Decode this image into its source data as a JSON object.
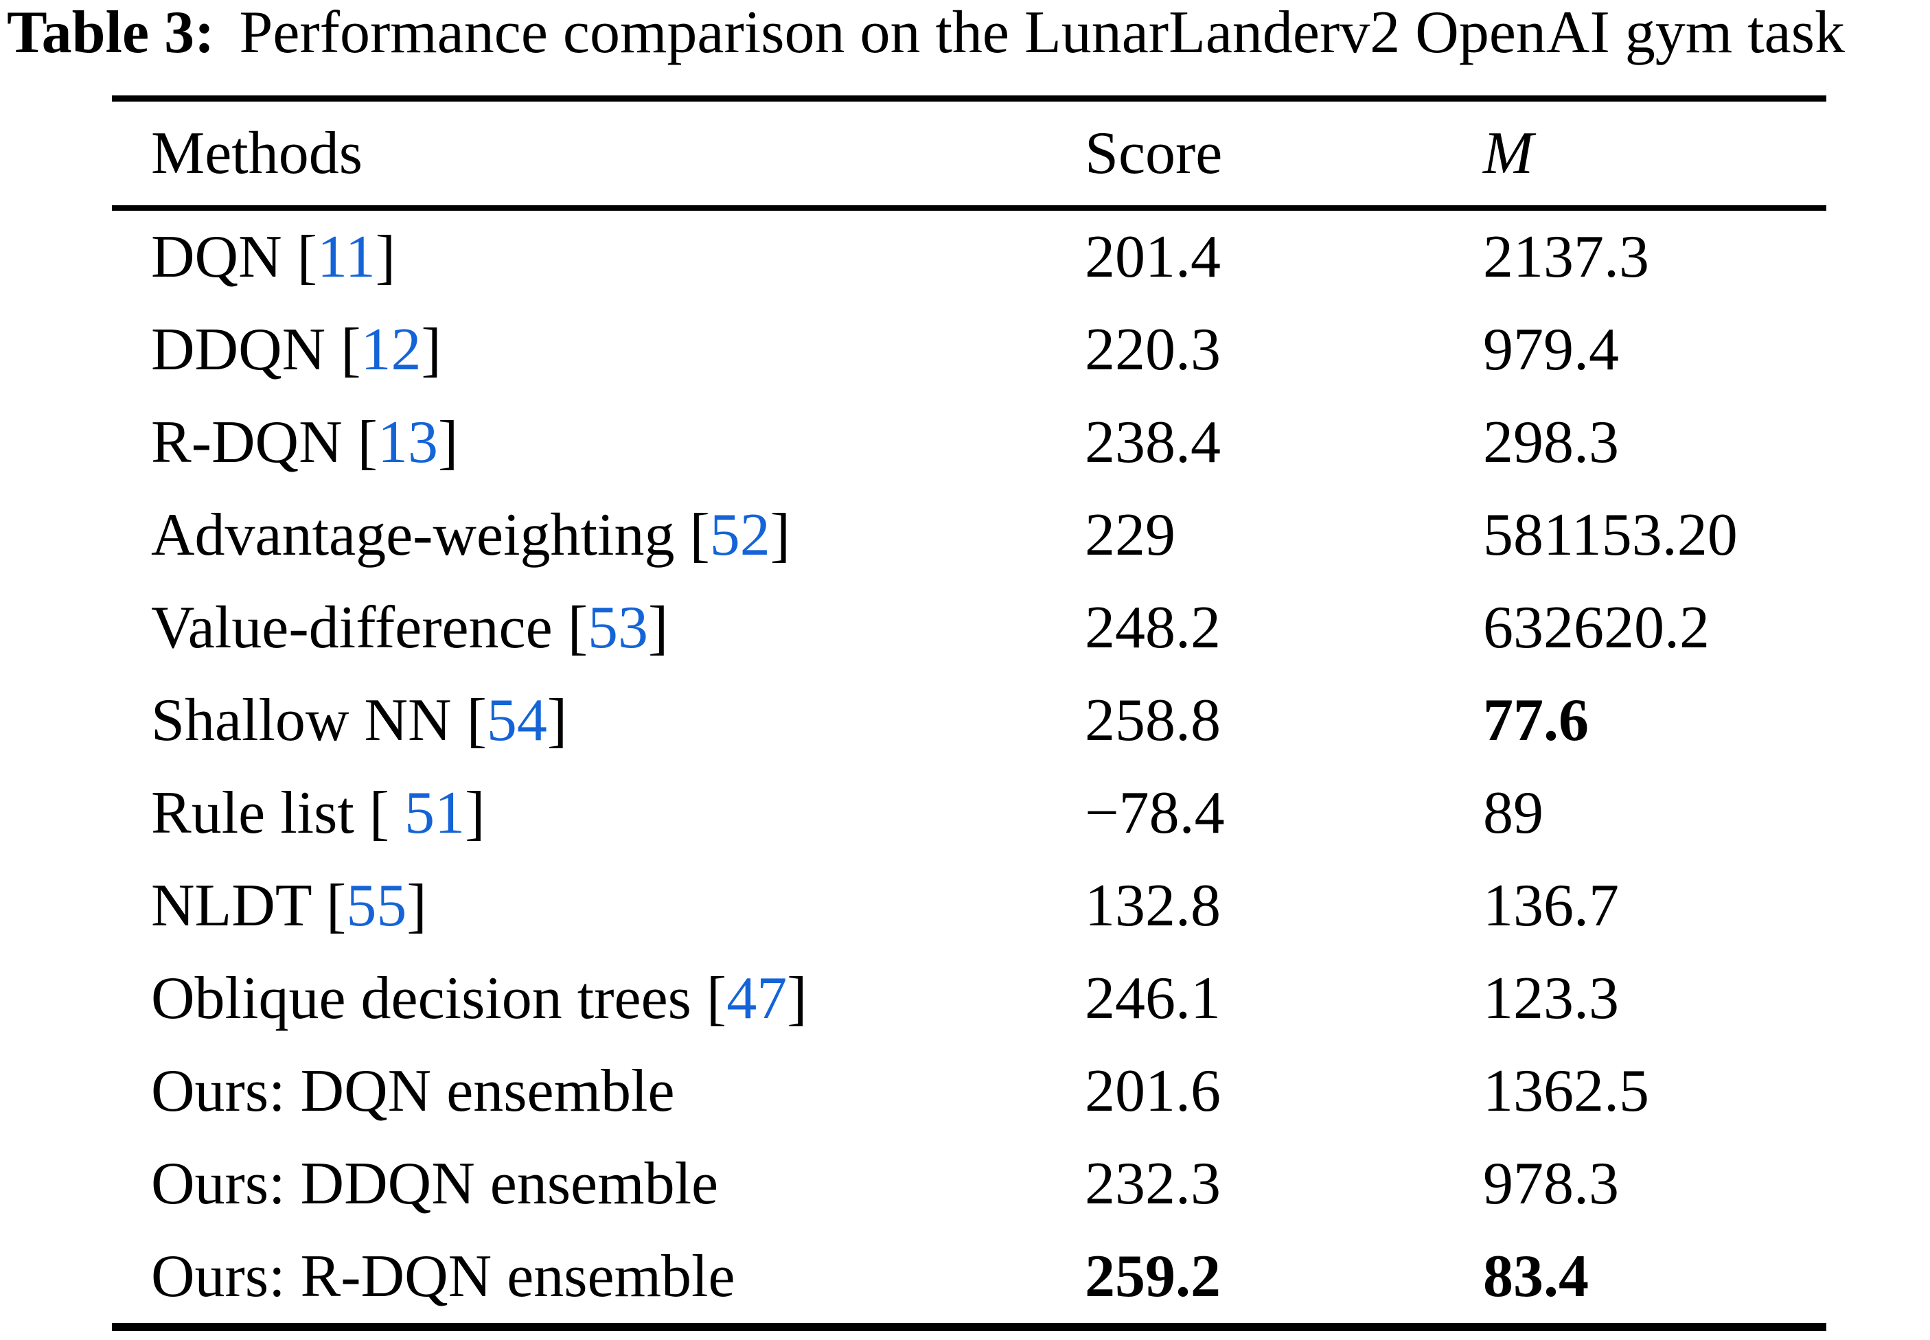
{
  "caption": {
    "prefix": "Table 3:",
    "text": "Performance comparison on the LunarLanderv2 OpenAI gym task"
  },
  "colors": {
    "citation_blue": "#1464d7",
    "text_black": "#000000",
    "background": "#ffffff"
  },
  "table": {
    "headers": {
      "methods": "Methods",
      "score": "Score",
      "m": "M"
    },
    "rows": [
      {
        "method": "DQN",
        "bracket_open": " [",
        "cite": "11",
        "bracket_close": "]",
        "score": "201.4",
        "m": "2137.3",
        "score_bold": false,
        "m_bold": false
      },
      {
        "method": "DDQN",
        "bracket_open": " [",
        "cite": "12",
        "bracket_close": "]",
        "score": "220.3",
        "m": "979.4",
        "score_bold": false,
        "m_bold": false
      },
      {
        "method": "R-DQN",
        "bracket_open": " [",
        "cite": "13",
        "bracket_close": "]",
        "score": "238.4",
        "m": "298.3",
        "score_bold": false,
        "m_bold": false
      },
      {
        "method": "Advantage-weighting",
        "bracket_open": " [",
        "cite": "52",
        "bracket_close": "]",
        "score": "229",
        "m": "581153.20",
        "score_bold": false,
        "m_bold": false
      },
      {
        "method": "Value-difference",
        "bracket_open": " [",
        "cite": "53",
        "bracket_close": "]",
        "score": "248.2",
        "m": "632620.2",
        "score_bold": false,
        "m_bold": false
      },
      {
        "method": "Shallow NN",
        "bracket_open": " [",
        "cite": "54",
        "bracket_close": "]",
        "score": "258.8",
        "m": "77.6",
        "score_bold": false,
        "m_bold": true
      },
      {
        "method": "Rule list",
        "bracket_open": " [ ",
        "cite": "51",
        "bracket_close": "]",
        "score": "−78.4",
        "m": "89",
        "score_bold": false,
        "m_bold": false
      },
      {
        "method": "NLDT",
        "bracket_open": " [",
        "cite": "55",
        "bracket_close": "]",
        "score": "132.8",
        "m": "136.7",
        "score_bold": false,
        "m_bold": false
      },
      {
        "method": "Oblique decision trees",
        "bracket_open": " [",
        "cite": "47",
        "bracket_close": "]",
        "score": "246.1",
        "m": "123.3",
        "score_bold": false,
        "m_bold": false
      },
      {
        "method": "Ours: DQN ensemble",
        "bracket_open": "",
        "cite": "",
        "bracket_close": "",
        "score": "201.6",
        "m": "1362.5",
        "score_bold": false,
        "m_bold": false
      },
      {
        "method": "Ours: DDQN ensemble",
        "bracket_open": "",
        "cite": "",
        "bracket_close": "",
        "score": "232.3",
        "m": "978.3",
        "score_bold": false,
        "m_bold": false
      },
      {
        "method": "Ours: R-DQN ensemble",
        "bracket_open": "",
        "cite": "",
        "bracket_close": "",
        "score": "259.2",
        "m": "83.4",
        "score_bold": true,
        "m_bold": true
      }
    ]
  }
}
